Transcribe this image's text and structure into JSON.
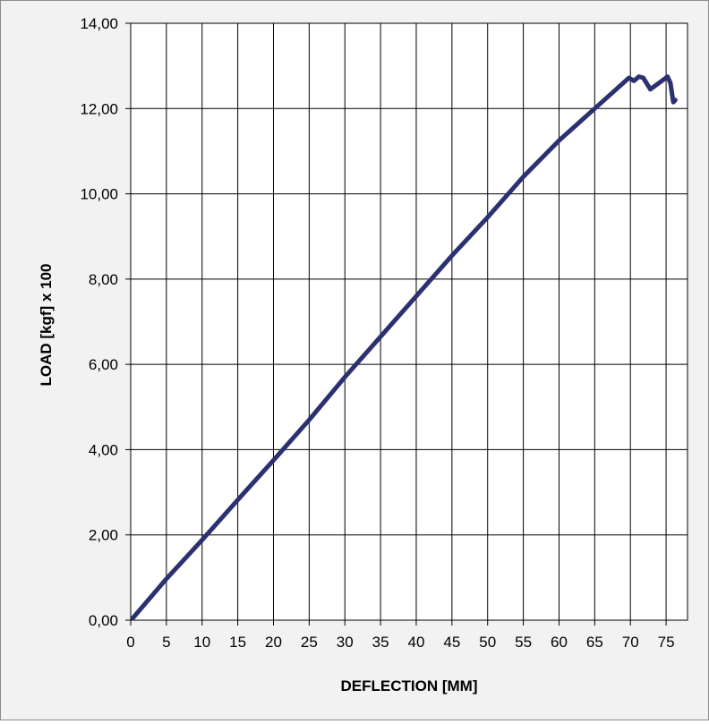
{
  "chart_data": {
    "type": "line",
    "title": "",
    "xlabel": "DEFLECTION [MM]",
    "ylabel": "LOAD [kgf] x 100",
    "xlim": [
      0,
      78
    ],
    "ylim": [
      0,
      14
    ],
    "x_ticks": [
      0,
      5,
      10,
      15,
      20,
      25,
      30,
      35,
      40,
      45,
      50,
      55,
      60,
      65,
      70,
      75
    ],
    "x_tick_labels": [
      "0",
      "5",
      "10",
      "15",
      "20",
      "25",
      "30",
      "35",
      "40",
      "45",
      "50",
      "55",
      "60",
      "65",
      "70",
      "75"
    ],
    "y_ticks": [
      0,
      2,
      4,
      6,
      8,
      10,
      12,
      14
    ],
    "y_tick_labels": [
      "0,00",
      "2,00",
      "4,00",
      "6,00",
      "8,00",
      "10,00",
      "12,00",
      "14,00"
    ],
    "grid": true,
    "legend": "none",
    "series": [
      {
        "color": "#2b3170",
        "x": [
          0.3,
          5,
          10,
          15,
          20,
          25,
          30,
          35,
          40,
          45,
          50,
          55,
          60,
          65,
          68,
          69.8,
          70.5,
          71.2,
          71.8,
          72.8,
          74,
          75.2,
          75.6,
          76,
          76.3
        ],
        "y": [
          0.05,
          0.97,
          1.88,
          2.82,
          3.75,
          4.7,
          5.7,
          6.65,
          7.6,
          8.55,
          9.45,
          10.4,
          11.25,
          12.0,
          12.45,
          12.72,
          12.65,
          12.75,
          12.72,
          12.45,
          12.6,
          12.75,
          12.6,
          12.15,
          12.2
        ]
      }
    ]
  }
}
